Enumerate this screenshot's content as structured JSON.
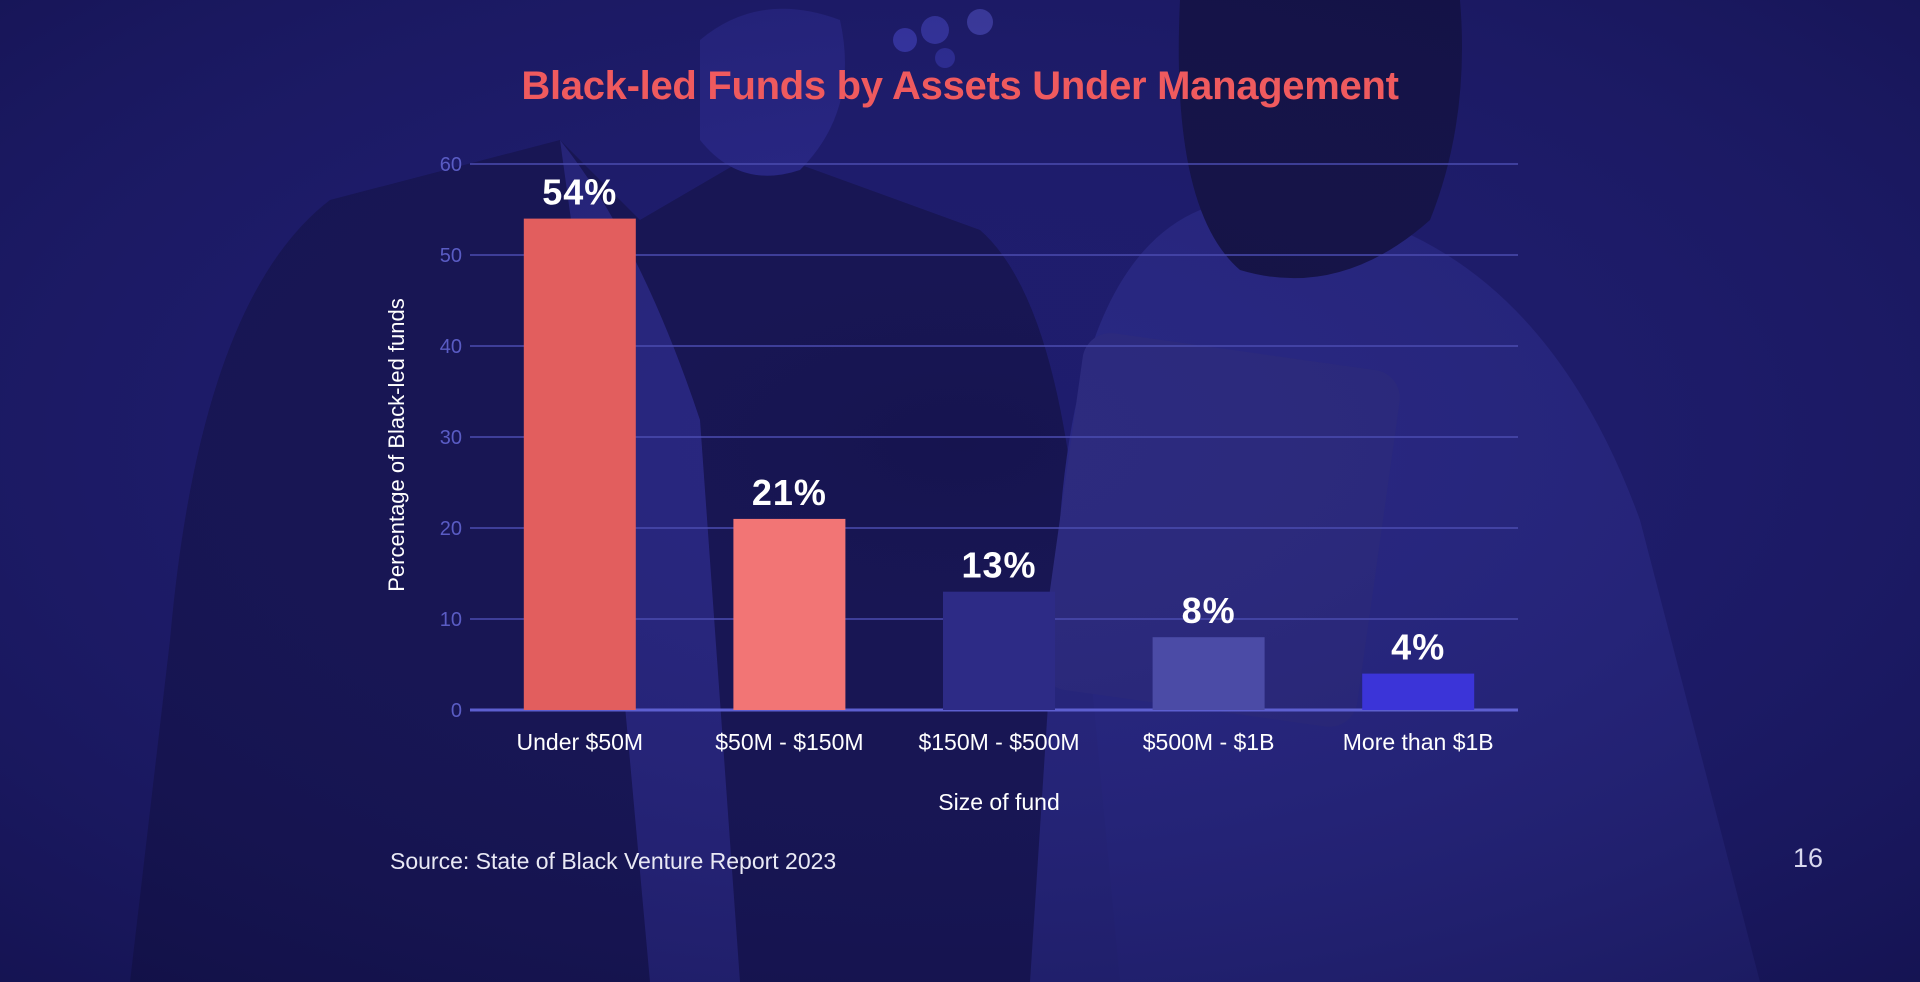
{
  "slide": {
    "page_number": "16",
    "source": "Source: State of Black Venture Report 2023"
  },
  "colors": {
    "background": "#1c1a66",
    "title": "#ef5a5e",
    "gridline": "#4b4cb0"
  },
  "chart_data": {
    "type": "bar",
    "title": "Black-led Funds by Assets Under Management",
    "xlabel": "Size of fund",
    "ylabel": "Percentage of Black-led funds",
    "categories": [
      "Under $50M",
      "$50M - $150M",
      "$150M - $500M",
      "$500M - $1B",
      "More than $1B"
    ],
    "values": [
      54,
      21,
      13,
      8,
      4
    ],
    "data_labels": [
      "54%",
      "21%",
      "13%",
      "8%",
      "4%"
    ],
    "bar_colors": [
      "#e25e5e",
      "#f27575",
      "#2d2b86",
      "#4b4ba6",
      "#3b34d8"
    ],
    "ylim": [
      0,
      60
    ],
    "yticks": [
      0,
      10,
      20,
      30,
      40,
      50,
      60
    ],
    "grid": true,
    "legend": "none"
  }
}
